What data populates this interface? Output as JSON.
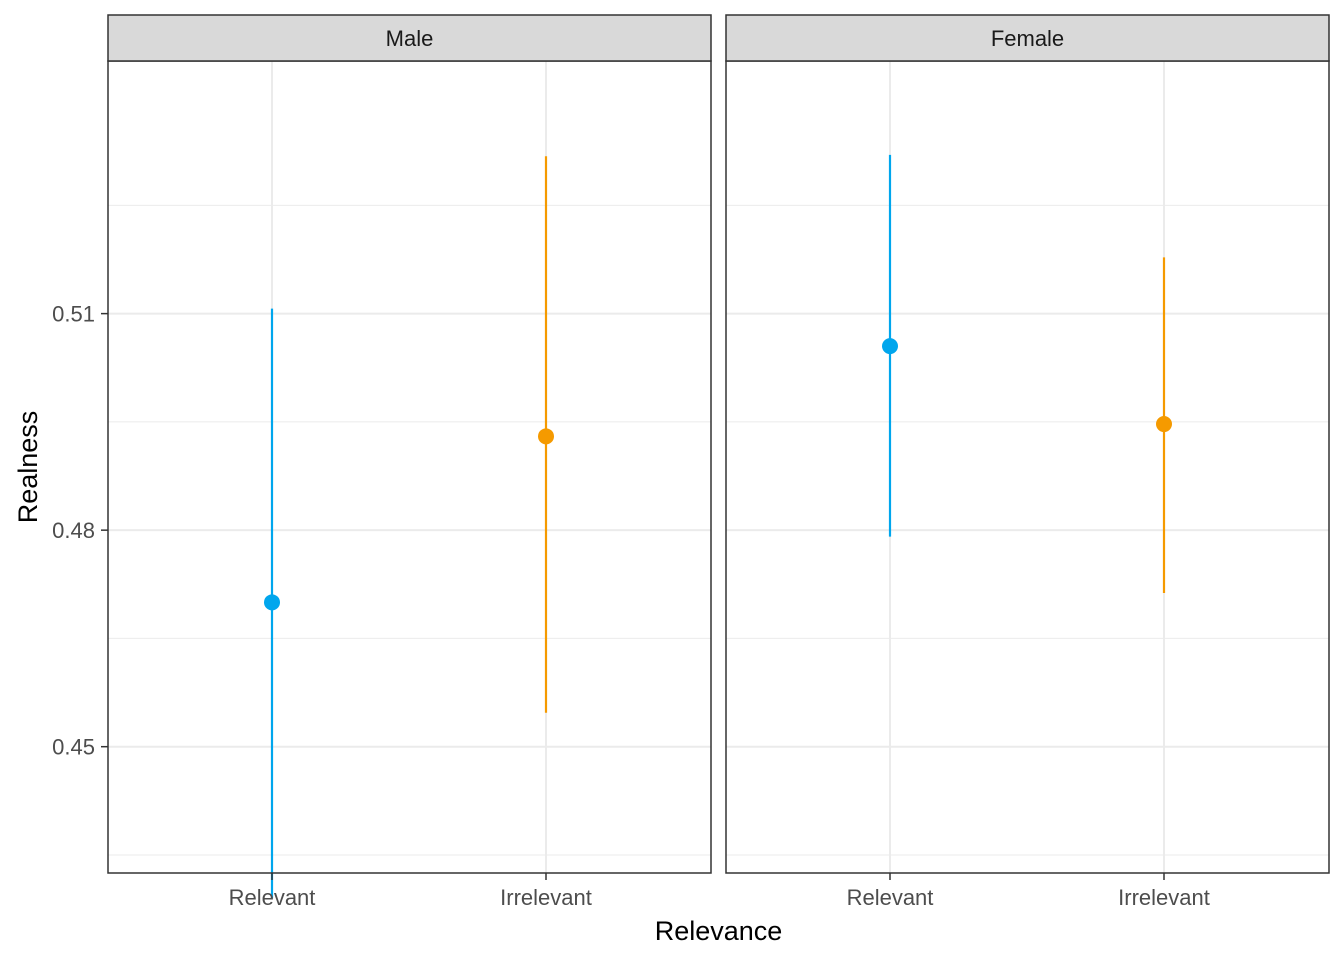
{
  "chart_data": {
    "type": "scatter",
    "subtype": "pointrange",
    "xlabel": "Relevance",
    "ylabel": "Realness",
    "ylim": [
      0.4325,
      0.545
    ],
    "yticks": [
      0.45,
      0.48,
      0.51
    ],
    "ytick_labels": [
      "0.45",
      "0.48",
      "0.51"
    ],
    "categories": [
      "Relevant",
      "Irrelevant"
    ],
    "grid": true,
    "legend": "none",
    "colors": {
      "Relevant": "#00a6ed",
      "Irrelevant": "#f59a00"
    },
    "panels": [
      {
        "strip": "Male",
        "points": [
          {
            "category": "Relevant",
            "y": 0.47,
            "lower": 0.429,
            "upper": 0.5107
          },
          {
            "category": "Irrelevant",
            "y": 0.493,
            "lower": 0.4547,
            "upper": 0.5318
          }
        ]
      },
      {
        "strip": "Female",
        "points": [
          {
            "category": "Relevant",
            "y": 0.5055,
            "lower": 0.4791,
            "upper": 0.532
          },
          {
            "category": "Irrelevant",
            "y": 0.4947,
            "lower": 0.4713,
            "upper": 0.5178
          }
        ]
      }
    ]
  }
}
